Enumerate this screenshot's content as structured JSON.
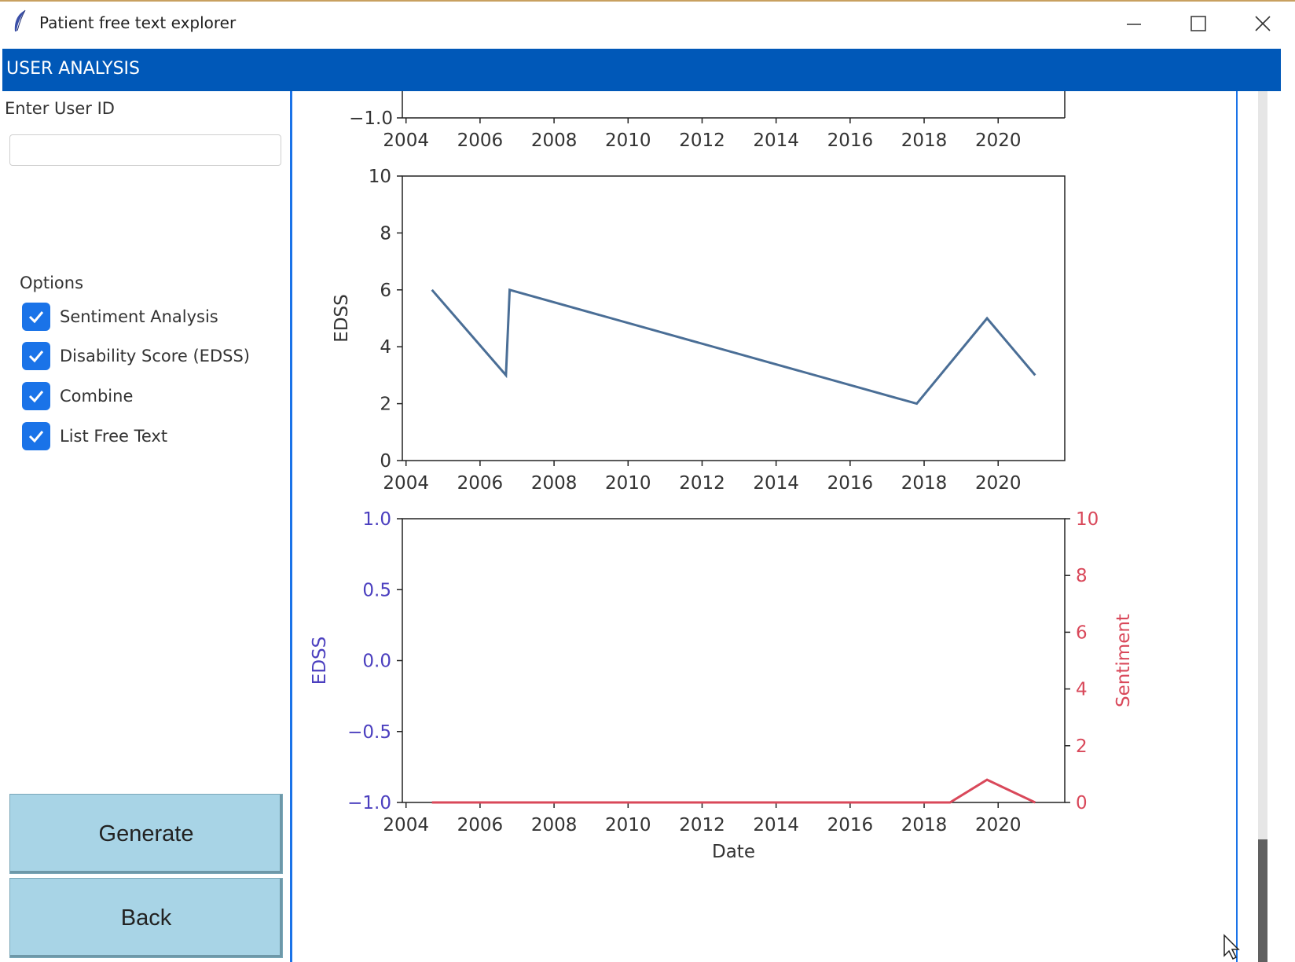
{
  "window": {
    "title": "Patient free text explorer"
  },
  "header": {
    "title": "USER ANALYSIS"
  },
  "form": {
    "user_id_label": "Enter User ID",
    "user_id_value": "",
    "options_label": "Options",
    "options": [
      {
        "label": "Sentiment Analysis",
        "checked": true
      },
      {
        "label": "Disability Score (EDSS)",
        "checked": true
      },
      {
        "label": "Combine",
        "checked": true
      },
      {
        "label": "List Free Text",
        "checked": true
      }
    ]
  },
  "buttons": {
    "generate": "Generate",
    "back": "Back"
  },
  "colors": {
    "header": "#0058b8",
    "checkbox": "#1a73e8",
    "button": "#a8d4e6",
    "edss_line": "#4a6e96",
    "sentiment_line": "#d9485a",
    "edss_axis": "#4b3fbf"
  },
  "chart_data": [
    {
      "type": "line",
      "partial": true,
      "x_ticks": [
        "2004",
        "2006",
        "2008",
        "2010",
        "2012",
        "2014",
        "2016",
        "2018",
        "2020"
      ],
      "y_ticks_visible": [
        "−1.0"
      ]
    },
    {
      "type": "line",
      "ylabel": "EDSS",
      "xlim": [
        2003.9,
        2021.8
      ],
      "ylim": [
        0,
        10
      ],
      "x_ticks": [
        "2004",
        "2006",
        "2008",
        "2010",
        "2012",
        "2014",
        "2016",
        "2018",
        "2020"
      ],
      "y_ticks": [
        "0",
        "2",
        "4",
        "6",
        "8",
        "10"
      ],
      "series": [
        {
          "x": [
            2004.7,
            2006.7,
            2006.8,
            2017.8,
            2019.7,
            2021.0
          ],
          "y": [
            6,
            3,
            6,
            2,
            5,
            3
          ]
        }
      ]
    },
    {
      "type": "line",
      "xlabel": "Date",
      "ylabel": "EDSS",
      "ylabel_right": "Sentiment",
      "xlim": [
        2003.9,
        2021.8
      ],
      "ylim": [
        -1.0,
        1.0
      ],
      "ylim_right": [
        0,
        10
      ],
      "x_ticks": [
        "2004",
        "2006",
        "2008",
        "2010",
        "2012",
        "2014",
        "2016",
        "2018",
        "2020"
      ],
      "y_ticks": [
        "−1.0",
        "−0.5",
        "0.0",
        "0.5",
        "1.0"
      ],
      "y_ticks_right": [
        "0",
        "2",
        "4",
        "6",
        "8",
        "10"
      ],
      "series": [
        {
          "axis": "right",
          "x": [
            2004.7,
            2007.0,
            2018.7,
            2019.7,
            2021.0
          ],
          "y": [
            0,
            0,
            0,
            0.8,
            0
          ]
        }
      ]
    }
  ]
}
